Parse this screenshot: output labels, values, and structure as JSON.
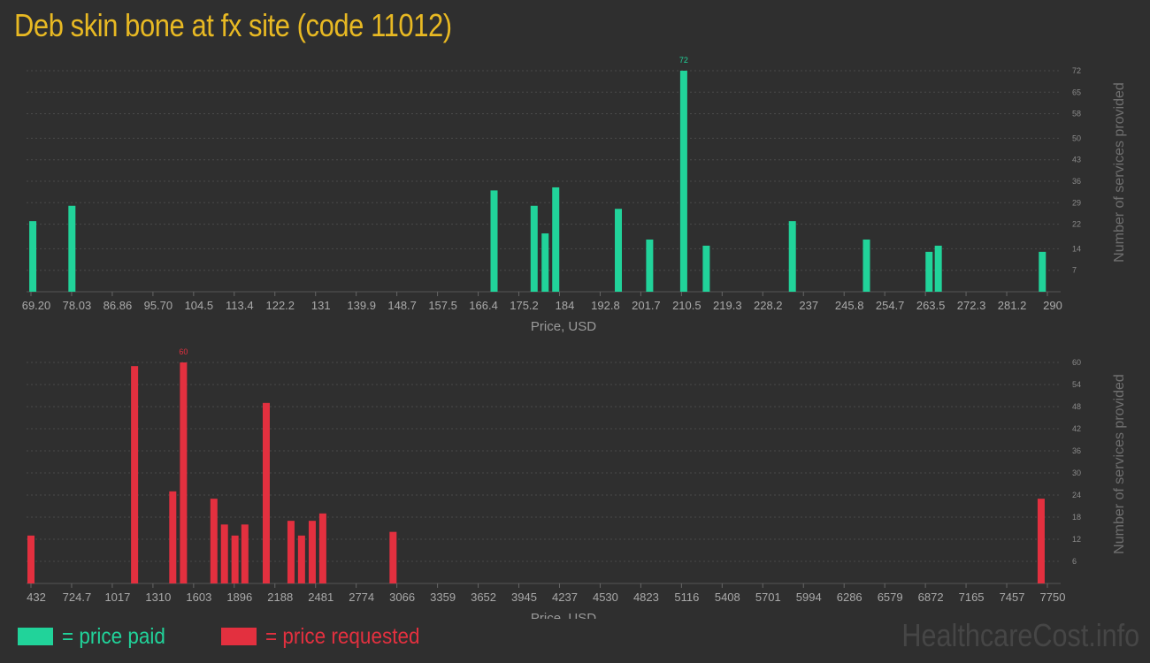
{
  "title": "Deb skin bone at fx site (code 11012)",
  "colors": {
    "paid": "#21d39a",
    "requested": "#e3303f",
    "title": "#e8b923",
    "background": "#2f2f2f"
  },
  "legend": {
    "paid_label": "= price paid",
    "requested_label": "= price requested"
  },
  "watermark": "HealthcareCost.info",
  "chart_data": [
    {
      "type": "bar",
      "title": "",
      "xlabel": "Price, USD",
      "ylabel": "Number of services provided",
      "color": "#21d39a",
      "xlim": [
        69.2,
        290
      ],
      "ylim": [
        0,
        72
      ],
      "x_ticks": [
        "69.20",
        "78.03",
        "86.86",
        "95.70",
        "104.5",
        "113.4",
        "122.2",
        "131",
        "139.9",
        "148.7",
        "157.5",
        "166.4",
        "175.2",
        "184",
        "192.8",
        "201.7",
        "210.5",
        "219.3",
        "228.2",
        "237",
        "245.8",
        "254.7",
        "263.5",
        "272.3",
        "281.2",
        "290"
      ],
      "y_ticks": [
        7,
        14,
        22,
        29,
        36,
        43,
        50,
        58,
        65,
        72
      ],
      "peak_label": "72",
      "bars": [
        {
          "x": 69.6,
          "y": 23
        },
        {
          "x": 78.1,
          "y": 28
        },
        {
          "x": 169.8,
          "y": 33
        },
        {
          "x": 178.5,
          "y": 28
        },
        {
          "x": 180.9,
          "y": 19
        },
        {
          "x": 183.2,
          "y": 34
        },
        {
          "x": 196.8,
          "y": 27
        },
        {
          "x": 203.6,
          "y": 17
        },
        {
          "x": 211.0,
          "y": 72
        },
        {
          "x": 215.9,
          "y": 15
        },
        {
          "x": 234.6,
          "y": 23
        },
        {
          "x": 250.7,
          "y": 17
        },
        {
          "x": 264.3,
          "y": 13
        },
        {
          "x": 266.3,
          "y": 15
        },
        {
          "x": 288.9,
          "y": 13
        }
      ]
    },
    {
      "type": "bar",
      "title": "",
      "xlabel": "Price, USD",
      "ylabel": "Number of services provided",
      "color": "#e3303f",
      "xlim": [
        432,
        7750
      ],
      "ylim": [
        0,
        60
      ],
      "x_ticks": [
        "432",
        "724.7",
        "1017",
        "1310",
        "1603",
        "1896",
        "2188",
        "2481",
        "2774",
        "3066",
        "3359",
        "3652",
        "3945",
        "4237",
        "4530",
        "4823",
        "5116",
        "5408",
        "5701",
        "5994",
        "6286",
        "6579",
        "6872",
        "7165",
        "7457",
        "7750"
      ],
      "y_ticks": [
        6,
        12,
        18,
        24,
        30,
        36,
        42,
        48,
        54,
        60
      ],
      "peak_label": "60",
      "bars": [
        {
          "x": 432,
          "y": 13
        },
        {
          "x": 1178,
          "y": 59
        },
        {
          "x": 1453,
          "y": 25
        },
        {
          "x": 1530,
          "y": 60
        },
        {
          "x": 1749,
          "y": 23
        },
        {
          "x": 1825,
          "y": 16
        },
        {
          "x": 1901,
          "y": 13
        },
        {
          "x": 1972,
          "y": 16
        },
        {
          "x": 2126,
          "y": 49
        },
        {
          "x": 2304,
          "y": 17
        },
        {
          "x": 2380,
          "y": 13
        },
        {
          "x": 2457,
          "y": 17
        },
        {
          "x": 2533,
          "y": 19
        },
        {
          "x": 3039,
          "y": 14
        },
        {
          "x": 7705,
          "y": 23
        }
      ]
    }
  ]
}
